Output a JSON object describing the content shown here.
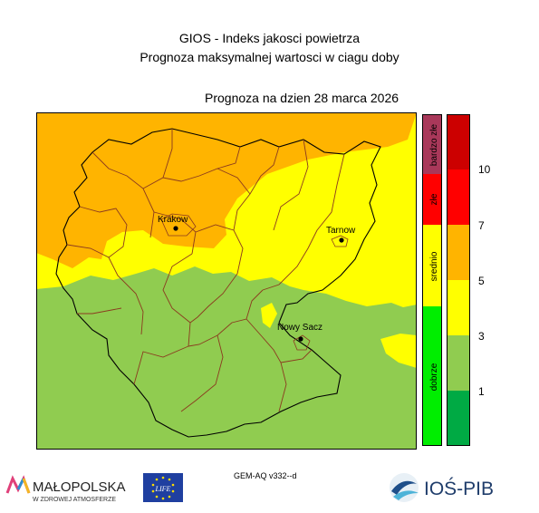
{
  "header": {
    "title": "GIOS - Indeks jakosci powietrza",
    "subtitle": "Prognoza maksymalnej wartosci w ciagu doby",
    "forecast_date": "Prognoza na dzien  28 marca 2026"
  },
  "map": {
    "cities": [
      {
        "name": "Krakow"
      },
      {
        "name": "Tarnow"
      },
      {
        "name": "Nowy Sacz"
      }
    ]
  },
  "legend": {
    "categories": [
      {
        "label": "bardzo złe",
        "color": "#a9385a"
      },
      {
        "label": "złe",
        "color": "#ff0000"
      },
      {
        "label": "srednio",
        "color": "#ffff00"
      },
      {
        "label": "dobrze",
        "color": "#00ee00"
      }
    ],
    "scale": [
      {
        "color": "#cc0000"
      },
      {
        "color": "#ff0000"
      },
      {
        "color": "#ffb400"
      },
      {
        "color": "#ffff00"
      },
      {
        "color": "#90cc50"
      },
      {
        "color": "#00aa44"
      }
    ],
    "ticks": [
      "10",
      "7",
      "5",
      "3",
      "1"
    ]
  },
  "footer": {
    "model": "GEM-AQ v332--d",
    "logo_malopolska": "MAŁOPOLSKA",
    "logo_malopolska_sub": "W ZDROWEJ ATMOSFERZE",
    "logo_eu": "LIFE",
    "logo_ios": "IOŚ-PIB"
  }
}
